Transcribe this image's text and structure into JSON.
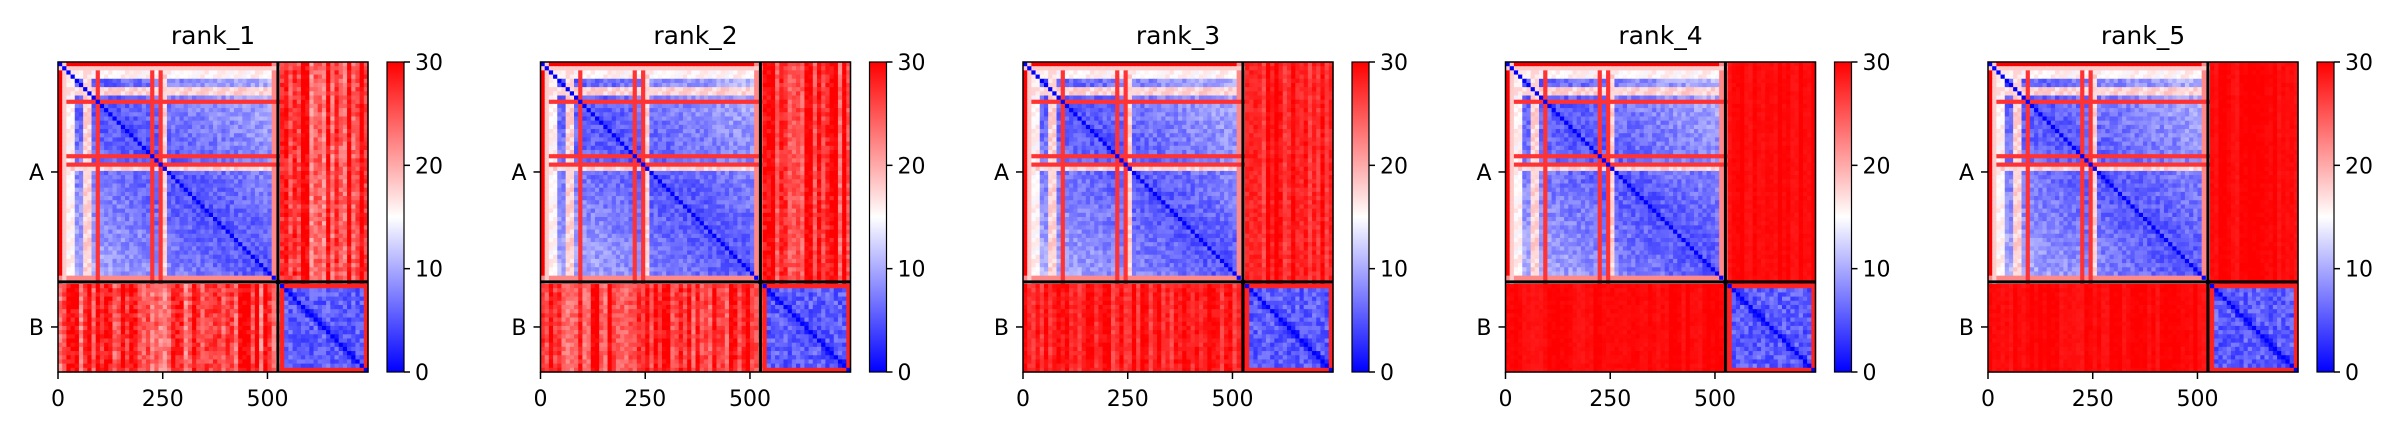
{
  "chart_data": {
    "type": "heatmap",
    "colormap": {
      "name": "bwr",
      "stops": [
        "#0000ff",
        "#ffffff",
        "#ff0000"
      ],
      "range": [
        0,
        30
      ],
      "ticks": [
        0,
        10,
        20,
        30
      ]
    },
    "x_range": [
      0,
      740
    ],
    "x_ticks": [
      0,
      250,
      500
    ],
    "chains": [
      {
        "label": "A",
        "start": 0,
        "end": 525
      },
      {
        "label": "B",
        "start": 525,
        "end": 740
      }
    ],
    "diagonal_value": 0,
    "panels": [
      {
        "title": "rank_1",
        "inter_chain_level": 26,
        "inter_chain_variation": 5
      },
      {
        "title": "rank_2",
        "inter_chain_level": 27,
        "inter_chain_variation": 4
      },
      {
        "title": "rank_3",
        "inter_chain_level": 28,
        "inter_chain_variation": 2.5
      },
      {
        "title": "rank_4",
        "inter_chain_level": 29.5,
        "inter_chain_variation": 0.8
      },
      {
        "title": "rank_5",
        "inter_chain_level": 29.5,
        "inter_chain_variation": 0.8
      }
    ]
  }
}
